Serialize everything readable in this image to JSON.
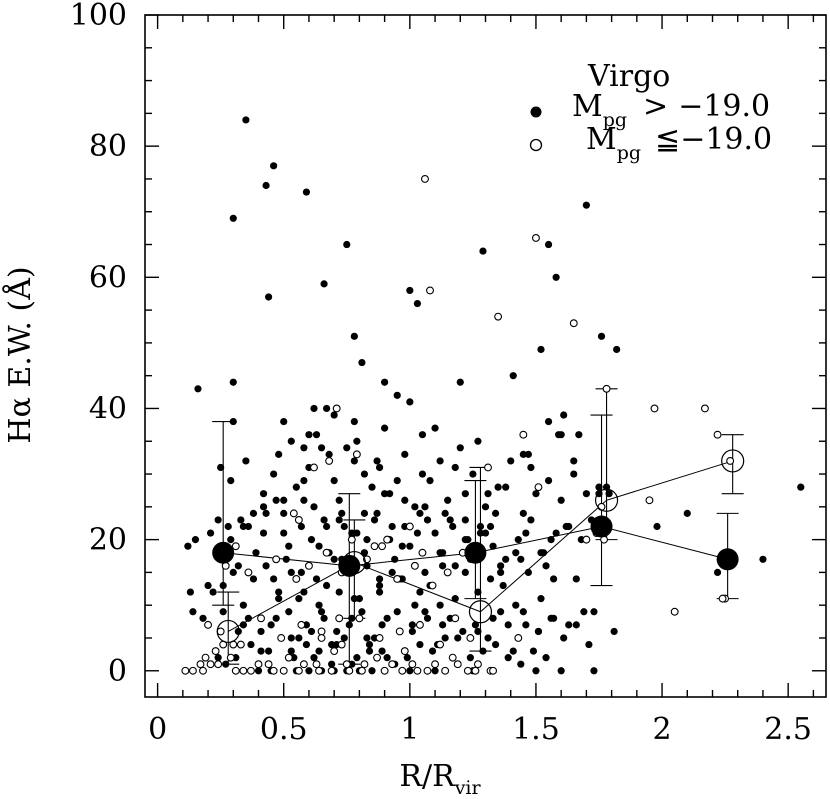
{
  "chart_data": {
    "type": "scatter",
    "title": "",
    "xlabel": "R/R",
    "xlabel_sub": "vir",
    "ylabel": "Hα   E.W. (Å)",
    "xlim": [
      -0.05,
      2.65
    ],
    "ylim": [
      -4,
      100
    ],
    "x_ticks": [
      0,
      0.5,
      1,
      1.5,
      2,
      2.5
    ],
    "x_tick_labels": [
      "0",
      "0.5",
      "1",
      "1.5",
      "2",
      "2.5"
    ],
    "y_ticks": [
      0,
      20,
      40,
      60,
      80,
      100
    ],
    "y_tick_labels": [
      "0",
      "20",
      "40",
      "60",
      "80",
      "100"
    ],
    "grid": false,
    "legend": {
      "placement": "top-right",
      "title": "Virgo",
      "entries": [
        {
          "marker": "filled",
          "prefix": "M",
          "sub": "pg",
          "relation": ">",
          "value": "−19.0"
        },
        {
          "marker": "open",
          "prefix": "M",
          "sub": "pg",
          "relation": "≦",
          "value": "−19.0"
        }
      ]
    },
    "series": [
      {
        "marker": "filled",
        "kind": "points",
        "color": "#000000",
        "x": [
          0.35,
          0.43,
          0.46,
          0.59,
          0.3,
          0.66,
          0.44,
          0.75,
          0.78,
          0.81,
          1.0,
          1.03,
          1.0,
          1.2,
          1.29,
          1.41,
          1.52,
          1.55,
          1.58,
          1.59,
          1.7,
          1.76,
          1.82,
          0.16,
          0.3,
          0.3,
          0.58,
          0.62,
          0.67,
          0.79,
          0.87,
          0.9,
          0.95,
          1.1,
          1.31,
          1.47,
          1.55,
          1.61,
          1.67,
          1.78,
          0.25,
          0.29,
          0.35,
          0.42,
          0.46,
          0.48,
          0.5,
          0.53,
          0.55,
          0.58,
          0.6,
          0.63,
          0.65,
          0.68,
          0.7,
          0.72,
          0.75,
          0.78,
          0.82,
          0.85,
          0.88,
          0.92,
          0.95,
          0.98,
          1.02,
          1.05,
          1.08,
          1.12,
          1.15,
          1.18,
          1.22,
          1.25,
          1.3,
          1.35,
          1.4,
          1.45,
          1.5,
          1.55,
          1.6,
          1.65,
          1.7,
          1.72,
          1.75,
          0.28,
          0.33,
          0.38,
          0.42,
          0.47,
          0.52,
          0.57,
          0.62,
          0.68,
          0.72,
          0.77,
          0.83,
          0.87,
          0.93,
          0.97,
          1.03,
          1.07,
          1.13,
          1.17,
          1.23,
          1.28,
          1.33,
          1.38,
          1.43,
          1.48,
          1.53,
          1.58,
          1.63,
          0.12,
          0.15,
          0.18,
          0.22,
          0.26,
          0.3,
          0.34,
          0.38,
          0.43,
          0.48,
          0.53,
          0.58,
          0.63,
          0.67,
          0.73,
          0.78,
          0.83,
          0.88,
          0.93,
          0.97,
          1.02,
          1.08,
          1.13,
          1.18,
          1.22,
          1.27,
          1.32,
          1.37,
          1.42,
          1.47,
          1.52,
          1.57,
          0.13,
          0.2,
          0.24,
          0.32,
          0.36,
          0.41,
          0.45,
          0.52,
          0.56,
          0.61,
          0.66,
          0.71,
          0.76,
          0.81,
          0.86,
          0.91,
          0.96,
          1.01,
          1.06,
          1.11,
          1.16,
          1.21,
          1.26,
          1.31,
          1.36,
          1.41,
          1.46,
          1.51,
          1.56,
          1.61,
          1.66,
          1.71,
          1.81,
          0.14,
          0.19,
          0.23,
          0.27,
          0.31,
          0.37,
          0.44,
          0.49,
          0.54,
          0.59,
          0.64,
          0.69,
          0.74,
          0.79,
          0.84,
          0.89,
          0.94,
          0.99,
          1.04,
          1.09,
          1.14,
          1.19,
          1.24,
          1.29,
          1.34,
          1.39,
          1.44,
          1.49,
          1.54,
          0.37,
          0.4,
          0.45,
          0.5,
          0.55,
          0.6,
          0.65,
          0.7,
          0.75,
          0.8,
          0.85,
          0.9,
          1.0,
          1.1,
          1.25,
          1.5,
          1.6,
          1.73,
          0.26,
          0.34,
          0.41,
          0.47,
          0.53,
          0.59,
          0.65,
          0.71,
          0.77,
          0.83,
          0.89,
          0.95,
          1.01,
          1.07,
          1.13,
          1.19,
          1.27,
          1.33,
          1.39,
          1.45,
          1.51,
          1.57,
          1.63,
          1.69,
          0.32,
          0.39,
          0.46,
          0.51,
          0.57,
          0.64,
          0.7,
          0.76,
          0.82,
          0.88,
          0.94,
          1.0,
          1.06,
          1.12,
          1.18,
          1.24,
          1.36,
          1.42,
          1.54,
          1.66,
          0.21,
          0.24,
          0.29,
          0.36,
          0.43,
          0.5,
          0.56,
          0.61,
          0.67,
          0.73,
          0.79,
          0.86,
          0.92,
          0.98,
          1.04,
          1.1,
          1.16,
          1.22,
          1.28,
          1.34,
          1.46,
          1.56,
          1.62,
          0.5,
          0.6,
          0.7,
          0.78,
          0.9,
          1.05,
          1.2,
          1.27,
          1.45,
          1.6,
          1.75,
          1.98,
          2.1,
          2.22,
          2.4,
          2.55,
          0.34,
          0.42,
          0.5,
          0.58,
          0.66,
          0.74,
          0.82,
          0.9,
          0.98,
          1.06,
          1.14,
          1.22,
          1.3,
          0.48,
          0.56,
          0.64,
          0.72,
          0.8,
          0.88,
          0.96,
          1.04,
          1.12,
          0.53,
          0.62,
          0.69,
          0.77,
          0.84,
          0.91,
          1.52,
          1.48,
          1.7,
          1.79,
          1.38,
          1.65,
          1.68,
          1.32,
          1.44,
          1.36,
          1.73
        ],
        "y": [
          84,
          74,
          77,
          73,
          69,
          59,
          57,
          65,
          51,
          47,
          58,
          56,
          41,
          44,
          64,
          45,
          49,
          65,
          60,
          36,
          71,
          51,
          49,
          43,
          44,
          38,
          34,
          40,
          40,
          35,
          32,
          44,
          42,
          37,
          27,
          33,
          38,
          39,
          36,
          28,
          31,
          29,
          32,
          27,
          30,
          33,
          26,
          35,
          28,
          29,
          31,
          36,
          34,
          33,
          29,
          26,
          34,
          32,
          30,
          28,
          31,
          27,
          29,
          33,
          25,
          30,
          29,
          32,
          26,
          31,
          27,
          30,
          25,
          28,
          32,
          24,
          27,
          29,
          26,
          30,
          27,
          23,
          28,
          22,
          23,
          24,
          21,
          26,
          19,
          22,
          25,
          18,
          23,
          21,
          20,
          24,
          22,
          19,
          21,
          23,
          18,
          22,
          20,
          21,
          19,
          17,
          20,
          23,
          18,
          21,
          22,
          19,
          20,
          8,
          12,
          13,
          15,
          10,
          14,
          16,
          11,
          15,
          12,
          14,
          13,
          17,
          11,
          16,
          12,
          15,
          14,
          10,
          13,
          16,
          11,
          15,
          12,
          14,
          13,
          10,
          15,
          11,
          14,
          12,
          13,
          2,
          6,
          8,
          3,
          7,
          9,
          5,
          6,
          8,
          4,
          7,
          9,
          5,
          8,
          6,
          7,
          9,
          4,
          8,
          6,
          7,
          5,
          9,
          3,
          7,
          6,
          8,
          5,
          7,
          4,
          6,
          9,
          2,
          3,
          1,
          2,
          4,
          3,
          5,
          2,
          4,
          3,
          1,
          5,
          2,
          4,
          3,
          1,
          2,
          4,
          3,
          5,
          1,
          2,
          3,
          4,
          2,
          1,
          3,
          2,
          0,
          0,
          0,
          0,
          0,
          0,
          0,
          0,
          0,
          0,
          0,
          0,
          0,
          0,
          0,
          0,
          0,
          0,
          9,
          7,
          6,
          8,
          5,
          7,
          9,
          6,
          8,
          5,
          7,
          9,
          6,
          8,
          7,
          5,
          6,
          8,
          7,
          9,
          6,
          8,
          7,
          9,
          16,
          18,
          14,
          17,
          15,
          19,
          17,
          16,
          18,
          14,
          17,
          19,
          15,
          18,
          16,
          17,
          15,
          18,
          16,
          14,
          21,
          23,
          20,
          22,
          24,
          21,
          23,
          20,
          22,
          24,
          21,
          23,
          20,
          22,
          24,
          21,
          23,
          20,
          22,
          24,
          21,
          20,
          22,
          38,
          36,
          39,
          38,
          37,
          36,
          34,
          35,
          33,
          36,
          27,
          22,
          24,
          15,
          17,
          28,
          22,
          25,
          24,
          26,
          23,
          22,
          24,
          27,
          26,
          25,
          24,
          23,
          21,
          12,
          11,
          10,
          12,
          11,
          13,
          14,
          12,
          10,
          3,
          2,
          4,
          1,
          3,
          2,
          18,
          31,
          20,
          27,
          28,
          32,
          20,
          22,
          17,
          16,
          9
        ]
      },
      {
        "marker": "open",
        "kind": "points",
        "color": "#000000",
        "x": [
          1.06,
          1.08,
          1.35,
          1.5,
          1.65,
          1.78,
          1.97,
          2.17,
          2.22,
          2.25,
          1.95,
          2.05,
          1.77,
          1.45,
          1.51,
          1.31,
          0.54,
          0.56,
          0.62,
          0.68,
          0.71,
          0.79,
          0.86,
          0.91,
          1.0,
          1.05,
          0.27,
          0.31,
          0.36,
          0.47,
          0.55,
          0.6,
          0.67,
          0.73,
          0.77,
          0.83,
          0.89,
          0.95,
          1.02,
          1.09,
          1.15,
          1.21,
          0.11,
          0.17,
          0.19,
          0.21,
          0.23,
          0.29,
          0.34,
          0.4,
          0.46,
          0.52,
          0.58,
          0.64,
          0.7,
          0.75,
          0.81,
          0.87,
          0.93,
          0.98,
          1.03,
          1.1,
          1.17,
          1.23,
          1.27,
          1.32,
          1.43,
          0.2,
          0.25,
          0.33,
          0.41,
          0.49,
          0.57,
          0.65,
          0.73,
          0.8,
          0.88,
          0.96,
          1.04,
          1.12,
          1.18,
          1.24,
          0.14,
          0.18,
          0.24,
          0.31,
          0.37,
          0.44,
          0.5,
          0.56,
          0.63,
          0.69,
          0.76,
          0.82,
          0.9,
          0.97,
          1.01,
          1.07,
          1.14,
          1.19,
          1.26,
          1.33,
          2.24,
          2.27,
          1.76,
          0.26,
          0.3,
          0.65,
          0.72,
          1.7,
          1.74
        ],
        "y": [
          75,
          58,
          54,
          66,
          53,
          43,
          40,
          40,
          36,
          11,
          26,
          9,
          20,
          36,
          28,
          31,
          24,
          23,
          31,
          32,
          40,
          33,
          19,
          20,
          22,
          18,
          16,
          19,
          15,
          17,
          14,
          16,
          18,
          15,
          20,
          17,
          19,
          14,
          16,
          13,
          15,
          18,
          0,
          1,
          2,
          1,
          3,
          2,
          0,
          1,
          0,
          2,
          1,
          0,
          3,
          1,
          0,
          2,
          1,
          3,
          0,
          1,
          2,
          0,
          1,
          0,
          5,
          7,
          6,
          4,
          8,
          5,
          7,
          6,
          4,
          8,
          5,
          6,
          7,
          4,
          8,
          5,
          0,
          0,
          1,
          0,
          0,
          1,
          0,
          0,
          1,
          0,
          0,
          1,
          0,
          0,
          1,
          0,
          0,
          1,
          0,
          0,
          11,
          32,
          25,
          4,
          4,
          5,
          8,
          20,
          21
        ]
      },
      {
        "marker": "filled-large",
        "kind": "binned-mean",
        "color": "#000000",
        "x": [
          0.26,
          0.76,
          1.26,
          1.76,
          2.26
        ],
        "y": [
          18,
          16,
          18,
          22,
          17
        ],
        "err_lo": [
          10,
          1,
          11,
          13,
          11
        ],
        "err_hi": [
          38,
          27,
          29,
          39,
          24
        ]
      },
      {
        "marker": "open-large",
        "kind": "binned-mean",
        "color": "#000000",
        "x": [
          0.28,
          0.78,
          1.28,
          1.78,
          2.28
        ],
        "y": [
          6,
          16.5,
          9,
          26,
          32
        ],
        "err_lo": [
          1,
          8,
          3,
          20,
          27
        ],
        "err_hi": [
          12,
          23,
          31,
          43,
          36
        ]
      }
    ]
  }
}
